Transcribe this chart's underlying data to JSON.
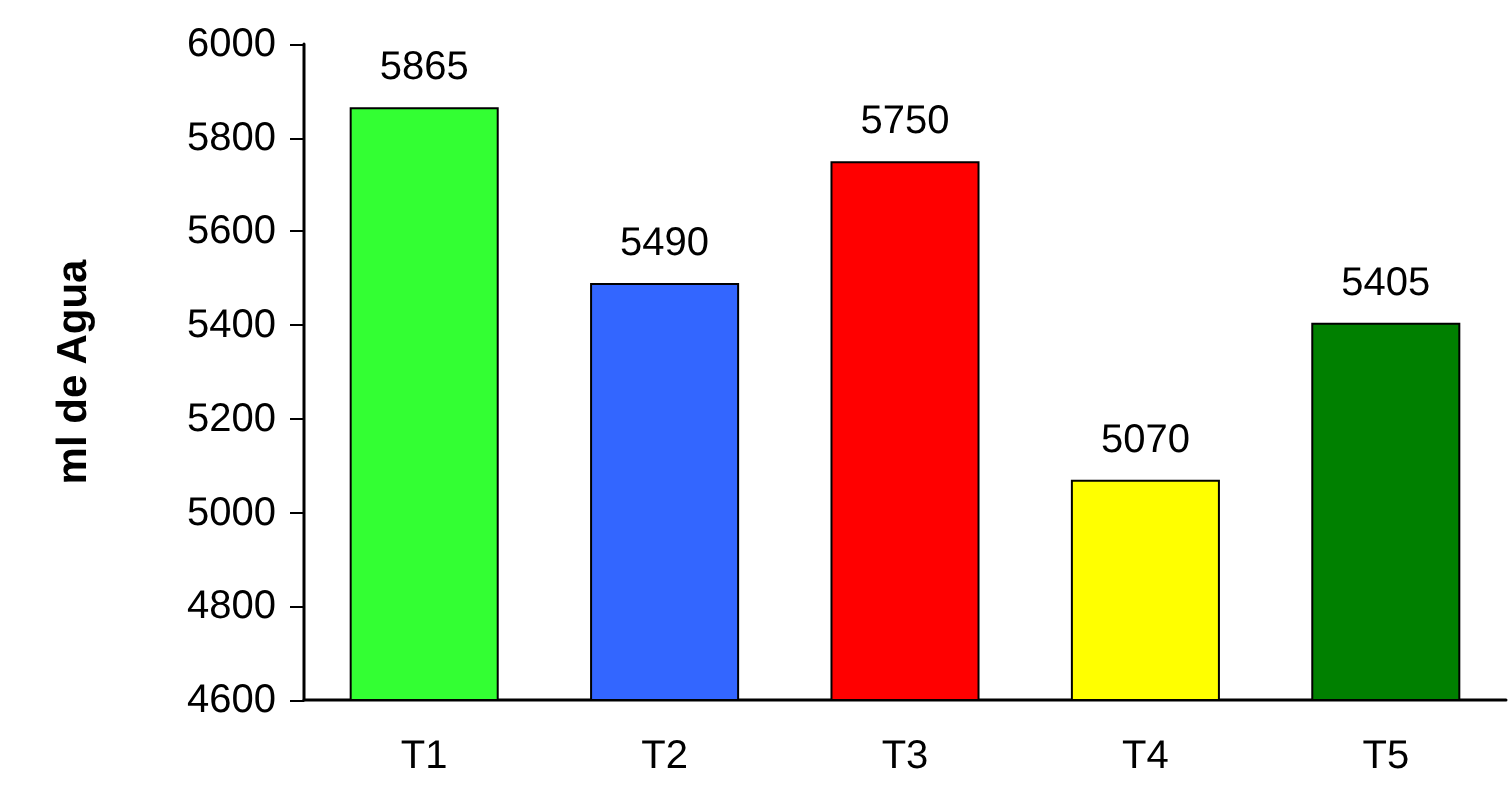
{
  "chart_data": {
    "type": "bar",
    "ylabel": "ml de Agua",
    "categories": [
      "T1",
      "T2",
      "T3",
      "T4",
      "T5"
    ],
    "values": [
      5865,
      5490,
      5750,
      5070,
      5405
    ],
    "colors": [
      "#33ff33",
      "#3366ff",
      "#ff0000",
      "#ffff00",
      "#008000"
    ],
    "ylim": [
      4600,
      6000
    ],
    "yticks": [
      4600,
      4800,
      5000,
      5200,
      5400,
      5600,
      5800,
      6000
    ],
    "data_labels": true,
    "grid": false
  }
}
